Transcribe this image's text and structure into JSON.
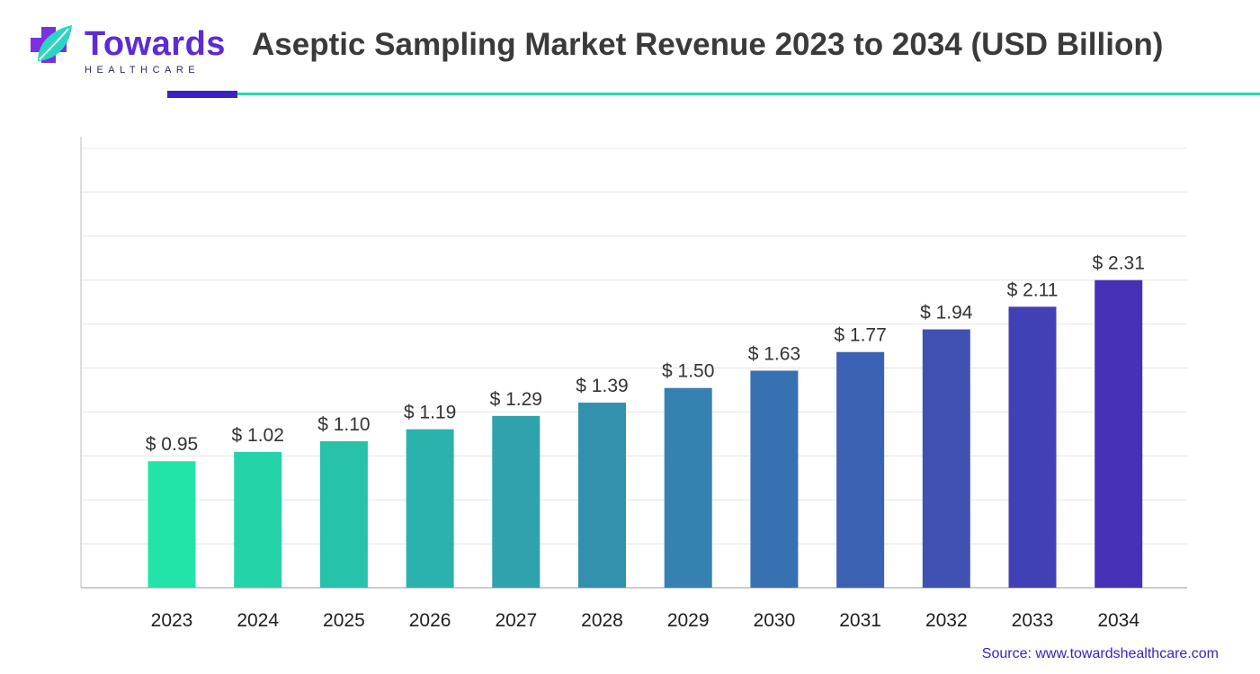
{
  "header": {
    "logo_name": "Towards",
    "logo_sub": "HEALTHCARE",
    "title": "Aseptic Sampling Market Revenue 2023 to 2034 (USD Billion)"
  },
  "colors": {
    "start": "#22e3a8",
    "end": "#4530b6",
    "brand": "#5b2bd6",
    "accent_line": "#29d8a6"
  },
  "chart_data": {
    "type": "bar",
    "categories": [
      "2023",
      "2024",
      "2025",
      "2026",
      "2027",
      "2028",
      "2029",
      "2030",
      "2031",
      "2032",
      "2033",
      "2034"
    ],
    "values": [
      0.95,
      1.02,
      1.1,
      1.19,
      1.29,
      1.39,
      1.5,
      1.63,
      1.77,
      1.94,
      2.11,
      2.31
    ],
    "value_labels": [
      "$ 0.95",
      "$ 1.02",
      "$ 1.10",
      "$ 1.19",
      "$ 1.29",
      "$ 1.39",
      "$ 1.50",
      "$ 1.63",
      "$ 1.77",
      "$ 1.94",
      "$ 2.11",
      "$ 2.31"
    ],
    "title": "Aseptic Sampling Market Revenue 2023 to 2034 (USD Billion)",
    "xlabel": "",
    "ylabel": "",
    "ylim": [
      0,
      3.3
    ],
    "grid": true,
    "legend": "none"
  },
  "footer": {
    "source": "Source: www.towardshealthcare.com"
  }
}
